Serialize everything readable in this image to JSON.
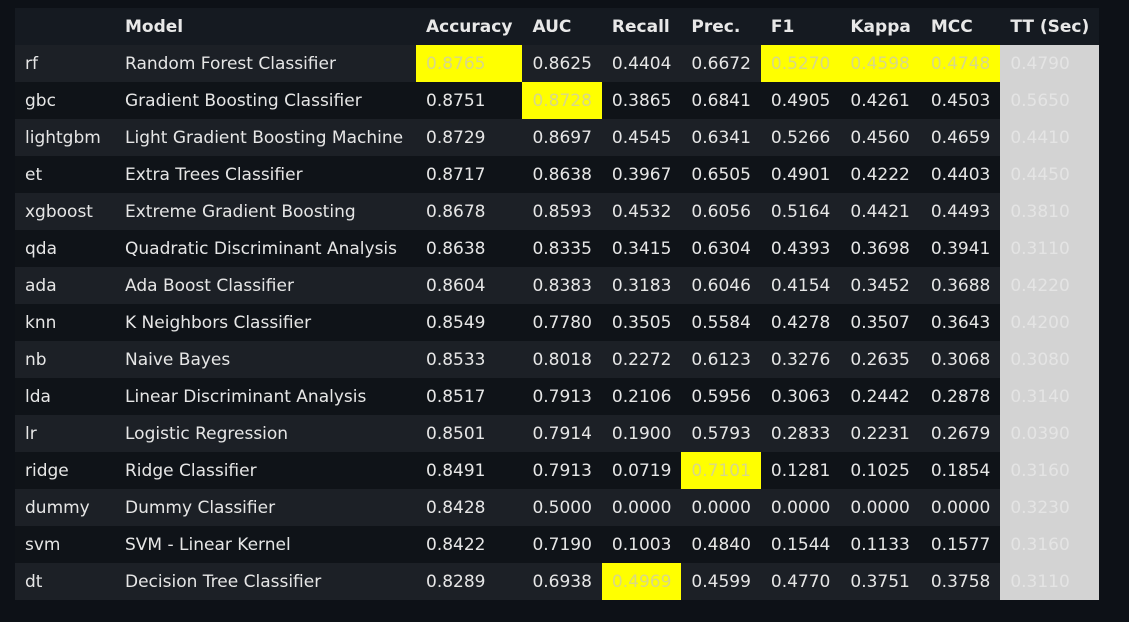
{
  "columns": [
    "",
    "Model",
    "Accuracy",
    "AUC",
    "Recall",
    "Prec.",
    "F1",
    "Kappa",
    "MCC",
    "TT (Sec)"
  ],
  "colors": {
    "background": "#0d1117",
    "highlight_max": "#ffff00",
    "highlight_tt": "#d3d3d3"
  },
  "rows": [
    {
      "id": "rf",
      "model": "Random Forest Classifier",
      "cells": [
        "0.8765",
        "0.8625",
        "0.4404",
        "0.6672",
        "0.5270",
        "0.4598",
        "0.4748",
        "0.4790"
      ]
    },
    {
      "id": "gbc",
      "model": "Gradient Boosting Classifier",
      "cells": [
        "0.8751",
        "0.8728",
        "0.3865",
        "0.6841",
        "0.4905",
        "0.4261",
        "0.4503",
        "0.5650"
      ]
    },
    {
      "id": "lightgbm",
      "model": "Light Gradient Boosting Machine",
      "cells": [
        "0.8729",
        "0.8697",
        "0.4545",
        "0.6341",
        "0.5266",
        "0.4560",
        "0.4659",
        "0.4410"
      ]
    },
    {
      "id": "et",
      "model": "Extra Trees Classifier",
      "cells": [
        "0.8717",
        "0.8638",
        "0.3967",
        "0.6505",
        "0.4901",
        "0.4222",
        "0.4403",
        "0.4450"
      ]
    },
    {
      "id": "xgboost",
      "model": "Extreme Gradient Boosting",
      "cells": [
        "0.8678",
        "0.8593",
        "0.4532",
        "0.6056",
        "0.5164",
        "0.4421",
        "0.4493",
        "0.3810"
      ]
    },
    {
      "id": "qda",
      "model": "Quadratic Discriminant Analysis",
      "cells": [
        "0.8638",
        "0.8335",
        "0.3415",
        "0.6304",
        "0.4393",
        "0.3698",
        "0.3941",
        "0.3110"
      ]
    },
    {
      "id": "ada",
      "model": "Ada Boost Classifier",
      "cells": [
        "0.8604",
        "0.8383",
        "0.3183",
        "0.6046",
        "0.4154",
        "0.3452",
        "0.3688",
        "0.4220"
      ]
    },
    {
      "id": "knn",
      "model": "K Neighbors Classifier",
      "cells": [
        "0.8549",
        "0.7780",
        "0.3505",
        "0.5584",
        "0.4278",
        "0.3507",
        "0.3643",
        "0.4200"
      ]
    },
    {
      "id": "nb",
      "model": "Naive Bayes",
      "cells": [
        "0.8533",
        "0.8018",
        "0.2272",
        "0.6123",
        "0.3276",
        "0.2635",
        "0.3068",
        "0.3080"
      ]
    },
    {
      "id": "lda",
      "model": "Linear Discriminant Analysis",
      "cells": [
        "0.8517",
        "0.7913",
        "0.2106",
        "0.5956",
        "0.3063",
        "0.2442",
        "0.2878",
        "0.3140"
      ]
    },
    {
      "id": "lr",
      "model": "Logistic Regression",
      "cells": [
        "0.8501",
        "0.7914",
        "0.1900",
        "0.5793",
        "0.2833",
        "0.2231",
        "0.2679",
        "0.0390"
      ]
    },
    {
      "id": "ridge",
      "model": "Ridge Classifier",
      "cells": [
        "0.8491",
        "0.7913",
        "0.0719",
        "0.7101",
        "0.1281",
        "0.1025",
        "0.1854",
        "0.3160"
      ]
    },
    {
      "id": "dummy",
      "model": "Dummy Classifier",
      "cells": [
        "0.8428",
        "0.5000",
        "0.0000",
        "0.0000",
        "0.0000",
        "0.0000",
        "0.0000",
        "0.3230"
      ]
    },
    {
      "id": "svm",
      "model": "SVM - Linear Kernel",
      "cells": [
        "0.8422",
        "0.7190",
        "0.1003",
        "0.4840",
        "0.1544",
        "0.1133",
        "0.1577",
        "0.3160"
      ]
    },
    {
      "id": "dt",
      "model": "Decision Tree Classifier",
      "cells": [
        "0.8289",
        "0.6938",
        "0.4969",
        "0.4599",
        "0.4770",
        "0.3751",
        "0.3758",
        "0.3110"
      ]
    }
  ],
  "highlights": {
    "rf": [
      0,
      4,
      5,
      6
    ],
    "gbc": [
      1
    ],
    "ridge": [
      3
    ],
    "dt": [
      2
    ]
  }
}
